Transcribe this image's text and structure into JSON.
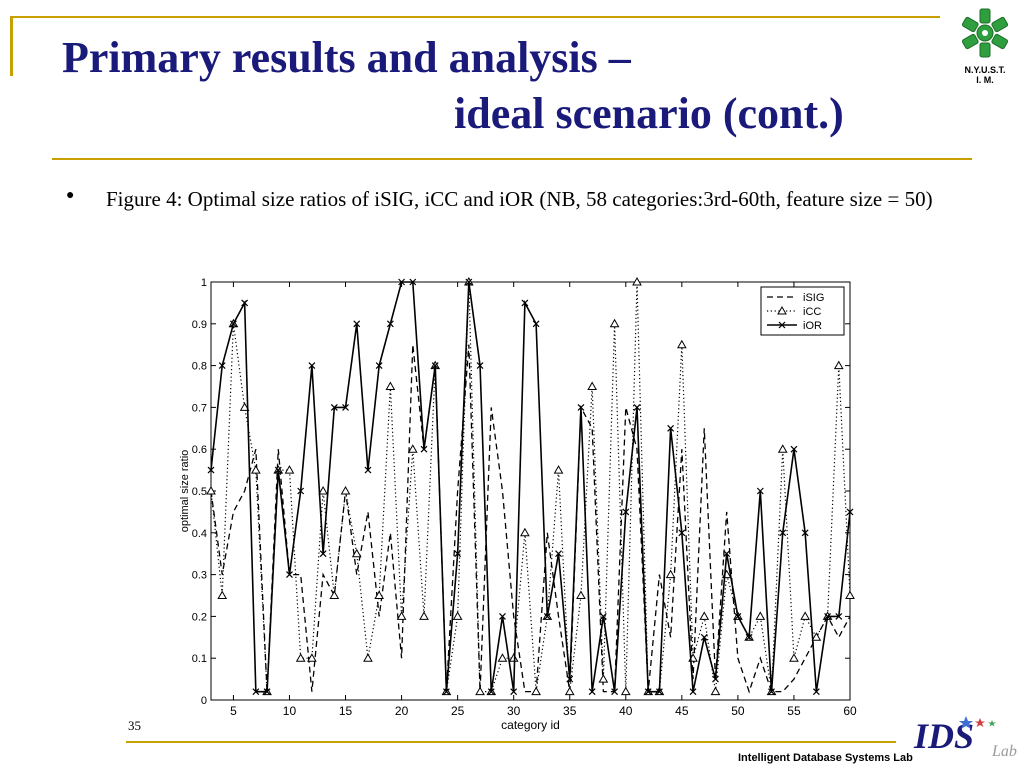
{
  "slide": {
    "title_line1": "Primary results and analysis  –",
    "title_line2": "ideal scenario (cont.)",
    "bullet_text": "Figure 4: Optimal size ratios of iSIG, iCC and iOR (NB, 58 categories:3rd-60th, feature size = 50)",
    "page_number": "35",
    "lab_name": "Intelligent Database Systems Lab",
    "university_caption_line1": "N.Y.U.S.T.",
    "university_caption_line2": "I. M.",
    "ids_logo_text": "IDS",
    "ids_logo_sub": "Lab",
    "colors": {
      "title": "#1a1a7a",
      "rule": "#c8a000",
      "logo_green": "#2e9e3e"
    }
  },
  "chart_data": {
    "type": "line",
    "xlabel": "category id",
    "ylabel": "optimal size ratio",
    "xlim": [
      3,
      60
    ],
    "ylim": [
      0,
      1
    ],
    "xticks": [
      5,
      10,
      15,
      20,
      25,
      30,
      35,
      40,
      45,
      50,
      55,
      60
    ],
    "yticks": [
      0,
      0.1,
      0.2,
      0.3,
      0.4,
      0.5,
      0.6,
      0.7,
      0.8,
      0.9,
      1
    ],
    "ytick_labels": [
      "0",
      "0.1",
      "0.2",
      "0.3",
      "0.4",
      "0.5",
      "0.6",
      "0.7",
      "0.8",
      "0.9",
      "1"
    ],
    "legend_position": "top-right",
    "x": [
      3,
      4,
      5,
      6,
      7,
      8,
      9,
      10,
      11,
      12,
      13,
      14,
      15,
      16,
      17,
      18,
      19,
      20,
      21,
      22,
      23,
      24,
      25,
      26,
      27,
      28,
      29,
      30,
      31,
      32,
      33,
      34,
      35,
      36,
      37,
      38,
      39,
      40,
      41,
      42,
      43,
      44,
      45,
      46,
      47,
      48,
      49,
      50,
      51,
      52,
      53,
      54,
      55,
      56,
      57,
      58,
      59,
      60
    ],
    "series": [
      {
        "name": "iSIG",
        "style": "dashed",
        "marker": "none",
        "values": [
          0.5,
          0.3,
          0.45,
          0.5,
          0.6,
          0.02,
          0.6,
          0.3,
          0.3,
          0.02,
          0.3,
          0.25,
          0.5,
          0.3,
          0.45,
          0.2,
          0.4,
          0.1,
          0.85,
          0.6,
          0.8,
          0.02,
          0.5,
          0.85,
          0.02,
          0.7,
          0.5,
          0.2,
          0.02,
          0.02,
          0.4,
          0.2,
          0.02,
          0.7,
          0.65,
          0.02,
          0.02,
          0.7,
          0.6,
          0.02,
          0.3,
          0.15,
          0.6,
          0.05,
          0.65,
          0.05,
          0.45,
          0.1,
          0.02,
          0.1,
          0.02,
          0.02,
          0.05,
          0.1,
          0.15,
          0.2,
          0.15,
          0.2
        ]
      },
      {
        "name": "iCC",
        "style": "dotted",
        "marker": "triangle",
        "values": [
          0.5,
          0.25,
          0.9,
          0.7,
          0.55,
          0.02,
          0.55,
          0.55,
          0.1,
          0.1,
          0.5,
          0.25,
          0.5,
          0.35,
          0.1,
          0.25,
          0.75,
          0.2,
          0.6,
          0.2,
          0.8,
          0.02,
          0.2,
          1.0,
          0.02,
          0.02,
          0.1,
          0.1,
          0.4,
          0.02,
          0.2,
          0.55,
          0.02,
          0.25,
          0.75,
          0.05,
          0.9,
          0.02,
          1.0,
          0.02,
          0.02,
          0.3,
          0.85,
          0.1,
          0.2,
          0.02,
          0.3,
          0.2,
          0.15,
          0.2,
          0.02,
          0.6,
          0.1,
          0.2,
          0.15,
          0.2,
          0.8,
          0.25
        ]
      },
      {
        "name": "iOR",
        "style": "solid",
        "marker": "x",
        "values": [
          0.55,
          0.8,
          0.9,
          0.95,
          0.02,
          0.02,
          0.55,
          0.3,
          0.5,
          0.8,
          0.35,
          0.7,
          0.7,
          0.9,
          0.55,
          0.8,
          0.9,
          1.0,
          1.0,
          0.6,
          0.8,
          0.02,
          0.35,
          1.0,
          0.8,
          0.02,
          0.2,
          0.02,
          0.95,
          0.9,
          0.2,
          0.35,
          0.05,
          0.7,
          0.02,
          0.2,
          0.02,
          0.45,
          0.7,
          0.02,
          0.02,
          0.65,
          0.4,
          0.02,
          0.15,
          0.05,
          0.35,
          0.2,
          0.15,
          0.5,
          0.02,
          0.4,
          0.6,
          0.4,
          0.02,
          0.2,
          0.2,
          0.45
        ]
      }
    ]
  }
}
